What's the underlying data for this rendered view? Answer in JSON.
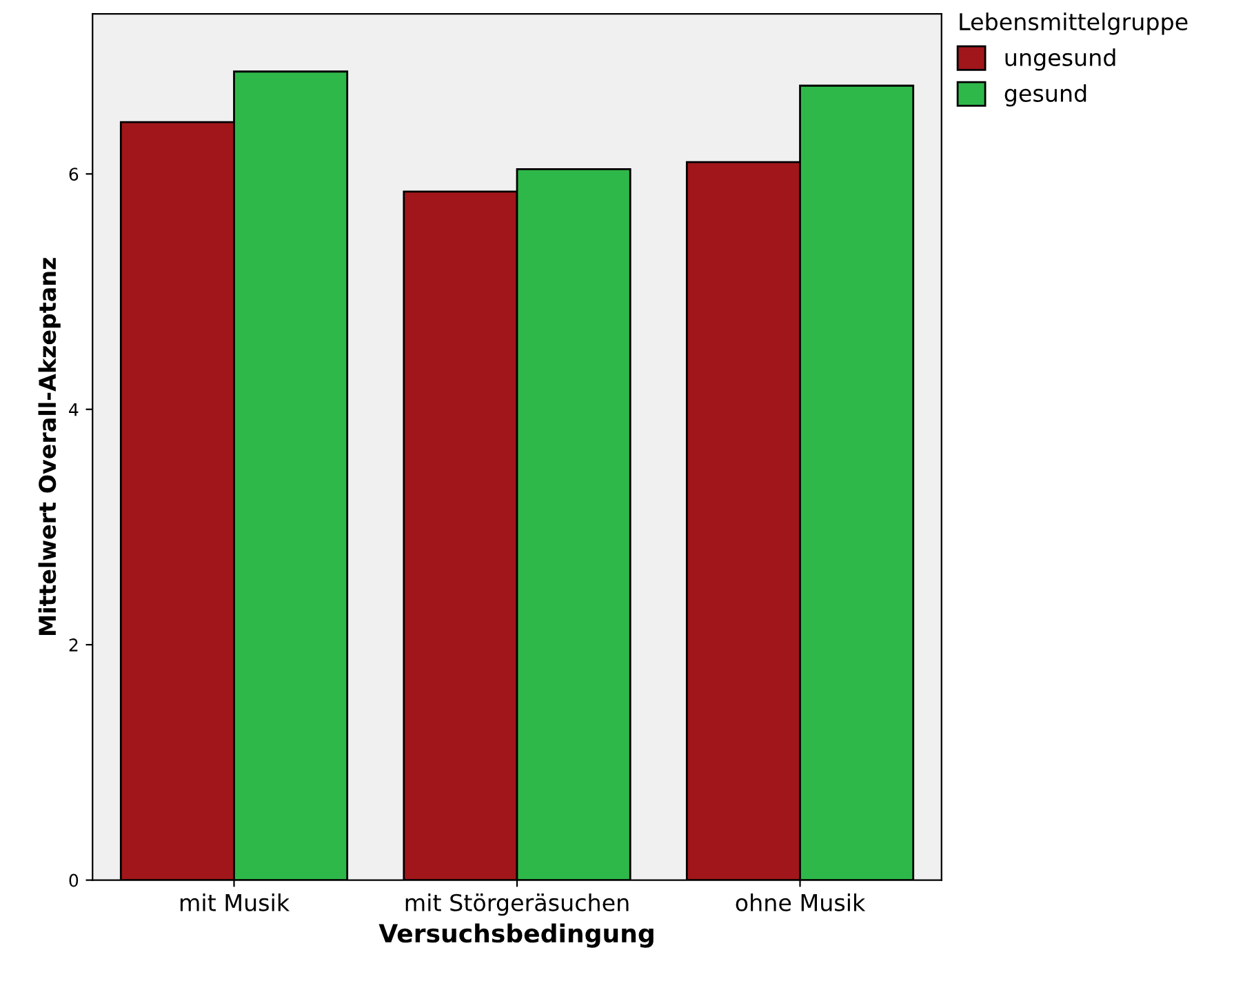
{
  "chart_data": {
    "type": "bar",
    "xlabel": "Versuchsbedingung",
    "ylabel": "Mittelwert Overall-Akzeptanz",
    "legend_title": "Lebensmittelgruppe",
    "categories": [
      "mit Musik",
      "mit Störgeräsuchen",
      "ohne Musik"
    ],
    "series": [
      {
        "name": "ungesund",
        "color": "#a0161a",
        "values": [
          6.44,
          5.85,
          6.1
        ]
      },
      {
        "name": "gesund",
        "color": "#2fb84a",
        "values": [
          6.87,
          6.04,
          6.75
        ]
      }
    ],
    "ylim": [
      0,
      7.36
    ],
    "yticks": [
      0,
      2,
      4,
      6
    ],
    "grid": false,
    "legend": "top right"
  }
}
